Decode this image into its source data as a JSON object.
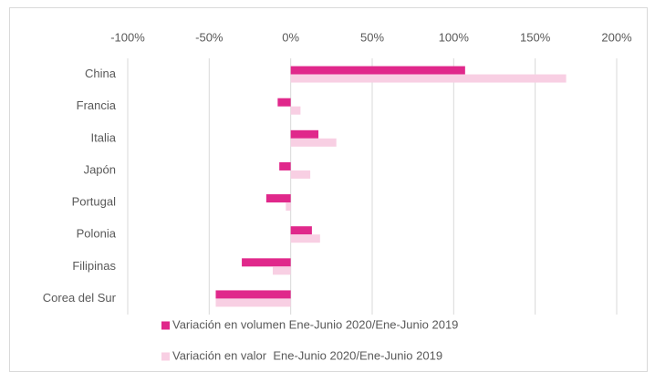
{
  "chart_data": {
    "type": "hbar",
    "categories": [
      "China",
      "Francia",
      "Italia",
      "Japón",
      "Portugal",
      "Polonia",
      "Filipinas",
      "Corea del Sur"
    ],
    "series": [
      {
        "name": "Variación en volumen Ene-Junio 2020/Ene-Junio 2019",
        "color": "#e0288b",
        "values": [
          107,
          -8,
          17,
          -7,
          -15,
          13,
          -30,
          -46
        ]
      },
      {
        "name": "Variación en valor  Ene-Junio 2020/Ene-Junio 2019",
        "color": "#f8cfe3",
        "values": [
          169,
          6,
          28,
          12,
          -3,
          18,
          -11,
          -46
        ]
      }
    ],
    "xlim": [
      -100,
      200
    ],
    "xticks": [
      {
        "value": -100,
        "label": "-100%"
      },
      {
        "value": -50,
        "label": "-50%"
      },
      {
        "value": 0,
        "label": "0%"
      },
      {
        "value": 50,
        "label": "50%"
      },
      {
        "value": 100,
        "label": "100%"
      },
      {
        "value": 150,
        "label": "150%"
      },
      {
        "value": 200,
        "label": "200%"
      }
    ],
    "grid": true,
    "legend": "bottom"
  }
}
